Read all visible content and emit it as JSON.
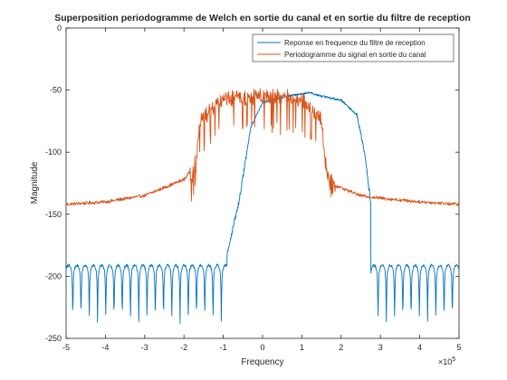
{
  "chart_data": {
    "type": "line",
    "title": "Superposition periodogramme de Welch en sortie du canal et en sortie du filtre de reception",
    "xlabel": "Frequency",
    "ylabel": "Magnitude",
    "x_exponent_label": "×10",
    "x_exponent_power": "5",
    "xlim": [
      -500000,
      500000
    ],
    "ylim": [
      -250,
      0
    ],
    "xticks": [
      -500000,
      -400000,
      -300000,
      -200000,
      -100000,
      0,
      100000,
      200000,
      300000,
      400000,
      500000
    ],
    "xtick_labels": [
      "-5",
      "-4",
      "-3",
      "-2",
      "-1",
      "0",
      "1",
      "2",
      "3",
      "4",
      "5"
    ],
    "yticks": [
      -250,
      -200,
      -150,
      -100,
      -50,
      0
    ],
    "ytick_labels": [
      "-250",
      "-200",
      "-150",
      "-100",
      "-50",
      "0"
    ],
    "grid": false,
    "legend_position": "top-right",
    "series": [
      {
        "name": "Reponse en frequence du filtre de reception",
        "color": "#0072BD",
        "description_points": {
          "x": [
            -500000,
            -300000,
            -100000,
            -60000,
            -30000,
            0,
            60000,
            120000,
            150000,
            200000,
            240000,
            260000,
            275000,
            300000,
            500000
          ],
          "y": [
            -200,
            -205,
            -195,
            -140,
            -80,
            -60,
            -55,
            -52,
            -55,
            -58,
            -70,
            -100,
            -140,
            -200,
            -200
          ]
        }
      },
      {
        "name": "Periodogramme du signal en sortie du canal",
        "color": "#D95319",
        "description_points": {
          "x": [
            -500000,
            -400000,
            -300000,
            -200000,
            -170000,
            -160000,
            -100000,
            0,
            100000,
            150000,
            160000,
            170000,
            250000,
            300000,
            400000,
            500000
          ],
          "y": [
            -142,
            -140,
            -135,
            -122,
            -110,
            -75,
            -58,
            -55,
            -58,
            -75,
            -110,
            -125,
            -135,
            -137,
            -140,
            -142
          ]
        }
      }
    ]
  }
}
